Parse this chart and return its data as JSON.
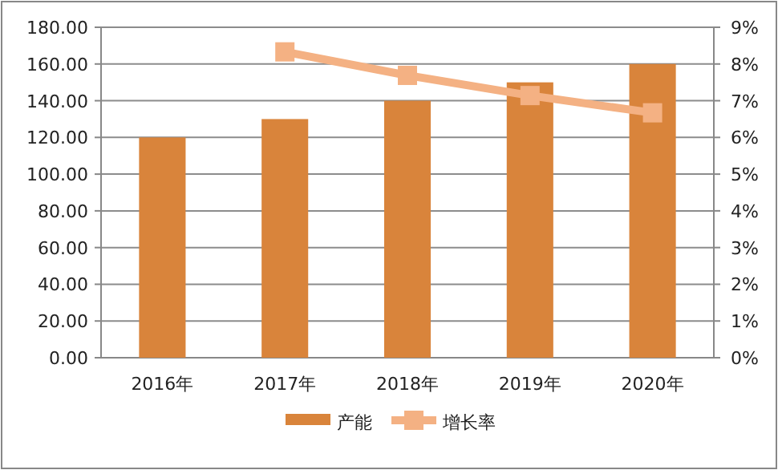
{
  "chart_data": {
    "type": "bar",
    "categories": [
      "2016年",
      "2017年",
      "2018年",
      "2019年",
      "2020年"
    ],
    "series": [
      {
        "name": "产能",
        "color": "#d9843b",
        "values": [
          120,
          130,
          140,
          150,
          160
        ]
      },
      {
        "name": "增长率",
        "type": "line",
        "axis": "y2",
        "color": "#f4b183",
        "marker": "square",
        "values": [
          null,
          8.33,
          7.69,
          7.14,
          6.67
        ]
      }
    ],
    "ylim": [
      0,
      180
    ],
    "yticks": [
      {
        "value": 0,
        "label": "0.00"
      },
      {
        "value": 20,
        "label": "20.00"
      },
      {
        "value": 40,
        "label": "40.00"
      },
      {
        "value": 60,
        "label": "60.00"
      },
      {
        "value": 80,
        "label": "80.00"
      },
      {
        "value": 100,
        "label": "100.00"
      },
      {
        "value": 120,
        "label": "120.00"
      },
      {
        "value": 140,
        "label": "140.00"
      },
      {
        "value": 160,
        "label": "160.00"
      },
      {
        "value": 180,
        "label": "180.00"
      }
    ],
    "y2lim": [
      0,
      9
    ],
    "y2ticks": [
      {
        "value": 0,
        "label": "0%"
      },
      {
        "value": 1,
        "label": "1%"
      },
      {
        "value": 2,
        "label": "2%"
      },
      {
        "value": 3,
        "label": "3%"
      },
      {
        "value": 4,
        "label": "4%"
      },
      {
        "value": 5,
        "label": "5%"
      },
      {
        "value": 6,
        "label": "6%"
      },
      {
        "value": 7,
        "label": "7%"
      },
      {
        "value": 8,
        "label": "8%"
      },
      {
        "value": 9,
        "label": "9%"
      }
    ],
    "grid": "y",
    "legend": "bottom"
  }
}
